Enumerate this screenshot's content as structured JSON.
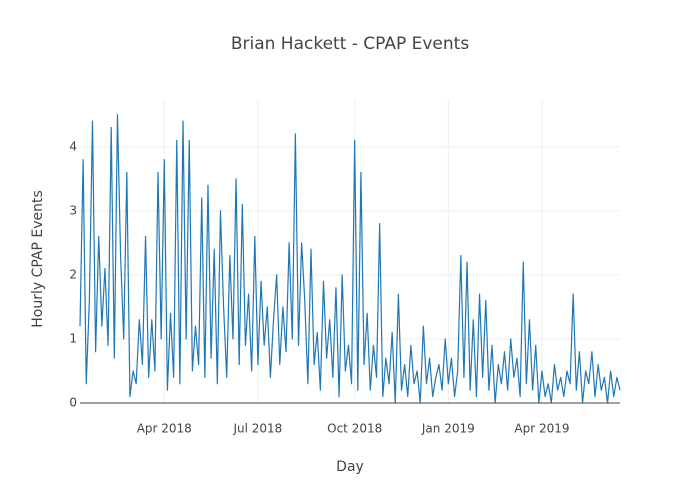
{
  "chart_data": {
    "type": "line",
    "title": "Brian Hackett - CPAP Events",
    "x_label": "Day",
    "y_label": "Hourly CPAP Events",
    "grid": true,
    "ylim": [
      0,
      4.73
    ],
    "yticks": [
      0,
      1,
      2,
      3,
      4
    ],
    "categories": [
      null,
      null,
      null,
      null,
      null,
      null,
      null,
      null,
      null,
      null,
      null,
      null,
      null,
      null,
      null,
      null,
      null,
      null,
      null,
      null,
      null,
      null,
      null,
      null,
      null,
      null,
      null,
      "Apr 2018",
      null,
      null,
      null,
      null,
      null,
      null,
      null,
      null,
      null,
      null,
      null,
      null,
      null,
      null,
      null,
      null,
      null,
      null,
      null,
      null,
      null,
      null,
      null,
      null,
      null,
      null,
      null,
      null,
      null,
      "Jul 2018",
      null,
      null,
      null,
      null,
      null,
      null,
      null,
      null,
      null,
      null,
      null,
      null,
      null,
      null,
      null,
      null,
      null,
      null,
      null,
      null,
      null,
      null,
      null,
      null,
      null,
      null,
      null,
      null,
      null,
      null,
      "Oct 2018",
      null,
      null,
      null,
      null,
      null,
      null,
      null,
      null,
      null,
      null,
      null,
      null,
      null,
      null,
      null,
      null,
      null,
      null,
      null,
      null,
      null,
      null,
      null,
      null,
      null,
      null,
      null,
      null,
      null,
      "Jan 2019",
      null,
      null,
      null,
      null,
      null,
      null,
      null,
      null,
      null,
      null,
      null,
      null,
      null,
      null,
      null,
      null,
      null,
      null,
      null,
      null,
      null,
      null,
      null,
      null,
      null,
      null,
      null,
      null,
      null,
      "Apr 2019",
      null,
      null,
      null,
      null,
      null,
      null,
      null,
      null,
      null,
      null,
      null,
      null,
      null,
      null,
      null,
      null,
      null,
      null,
      null,
      null,
      null,
      null,
      null,
      null,
      null
    ],
    "series": [
      {
        "name": "Hourly CPAP Events",
        "color": "#1f77b4",
        "values": [
          1.2,
          3.8,
          0.3,
          1.6,
          4.4,
          0.8,
          2.6,
          1.2,
          2.1,
          0.9,
          4.3,
          0.7,
          4.5,
          2.3,
          1.0,
          3.6,
          0.1,
          0.5,
          0.3,
          1.3,
          0.6,
          2.6,
          0.4,
          1.3,
          0.5,
          3.6,
          1.0,
          3.8,
          0.2,
          1.4,
          0.4,
          4.1,
          0.3,
          4.4,
          1.0,
          4.1,
          0.5,
          1.2,
          0.6,
          3.2,
          0.4,
          3.4,
          0.7,
          2.4,
          0.3,
          3.0,
          1.5,
          0.4,
          2.3,
          1.0,
          3.5,
          0.6,
          3.1,
          0.9,
          1.7,
          0.5,
          2.6,
          0.6,
          1.9,
          0.9,
          1.5,
          0.4,
          1.3,
          2.0,
          0.6,
          1.5,
          0.8,
          2.5,
          1.0,
          4.2,
          0.9,
          2.5,
          1.6,
          0.3,
          2.4,
          0.6,
          1.1,
          0.2,
          1.9,
          0.7,
          1.3,
          0.4,
          1.8,
          0.1,
          2.0,
          0.5,
          0.9,
          0.3,
          4.1,
          0.2,
          3.6,
          0.6,
          1.4,
          0.2,
          0.9,
          0.4,
          2.8,
          0.1,
          0.7,
          0.3,
          1.1,
          0.0,
          1.7,
          0.2,
          0.6,
          0.1,
          0.9,
          0.3,
          0.5,
          0.0,
          1.2,
          0.3,
          0.7,
          0.1,
          0.4,
          0.6,
          0.2,
          1.0,
          0.3,
          0.7,
          0.1,
          0.5,
          2.3,
          0.4,
          2.2,
          0.2,
          1.3,
          0.1,
          1.7,
          0.4,
          1.6,
          0.2,
          0.9,
          0.0,
          0.6,
          0.3,
          0.8,
          0.2,
          1.0,
          0.4,
          0.7,
          0.1,
          2.2,
          0.3,
          1.3,
          0.2,
          0.9,
          0.0,
          0.5,
          0.1,
          0.3,
          0.0,
          0.6,
          0.2,
          0.4,
          0.1,
          0.5,
          0.3,
          1.7,
          0.2,
          0.8,
          0.0,
          0.5,
          0.3,
          0.8,
          0.1,
          0.6,
          0.2,
          0.4,
          0.0,
          0.5,
          0.1,
          0.4,
          0.2
        ]
      }
    ]
  }
}
